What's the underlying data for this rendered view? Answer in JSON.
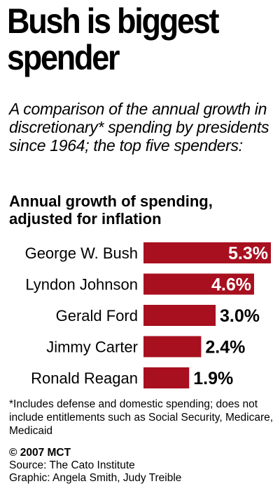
{
  "header": {
    "title_line1": "Bush is biggest",
    "title_line2": "spender",
    "subtitle": "A comparison of the annual growth in discretionary* spending by presidents since 1964; the top five spenders:"
  },
  "chart_heading": {
    "line1": "Annual growth of spending,",
    "line2": "adjusted for inflation"
  },
  "chart_data": {
    "type": "bar",
    "orientation": "horizontal",
    "title": "Annual growth of spending, adjusted for inflation",
    "categories": [
      "George W. Bush",
      "Lyndon Johnson",
      "Gerald Ford",
      "Jimmy Carter",
      "Ronald Reagan"
    ],
    "values": [
      5.3,
      4.6,
      3.0,
      2.4,
      1.9
    ],
    "value_labels": [
      "5.3%",
      "4.6%",
      "3.0%",
      "2.4%",
      "1.9%"
    ],
    "bar_color": "#a8101f",
    "grid": false,
    "legend": "none"
  },
  "footnote": "*Includes defense and domestic spending; does not include entitlements such as Social Security, Medicare, Medicaid",
  "credits": {
    "copyright": "© 2007 MCT",
    "source": "Source: The Cato Institute",
    "graphic": "Graphic: Angela Smith, Judy Treible"
  }
}
